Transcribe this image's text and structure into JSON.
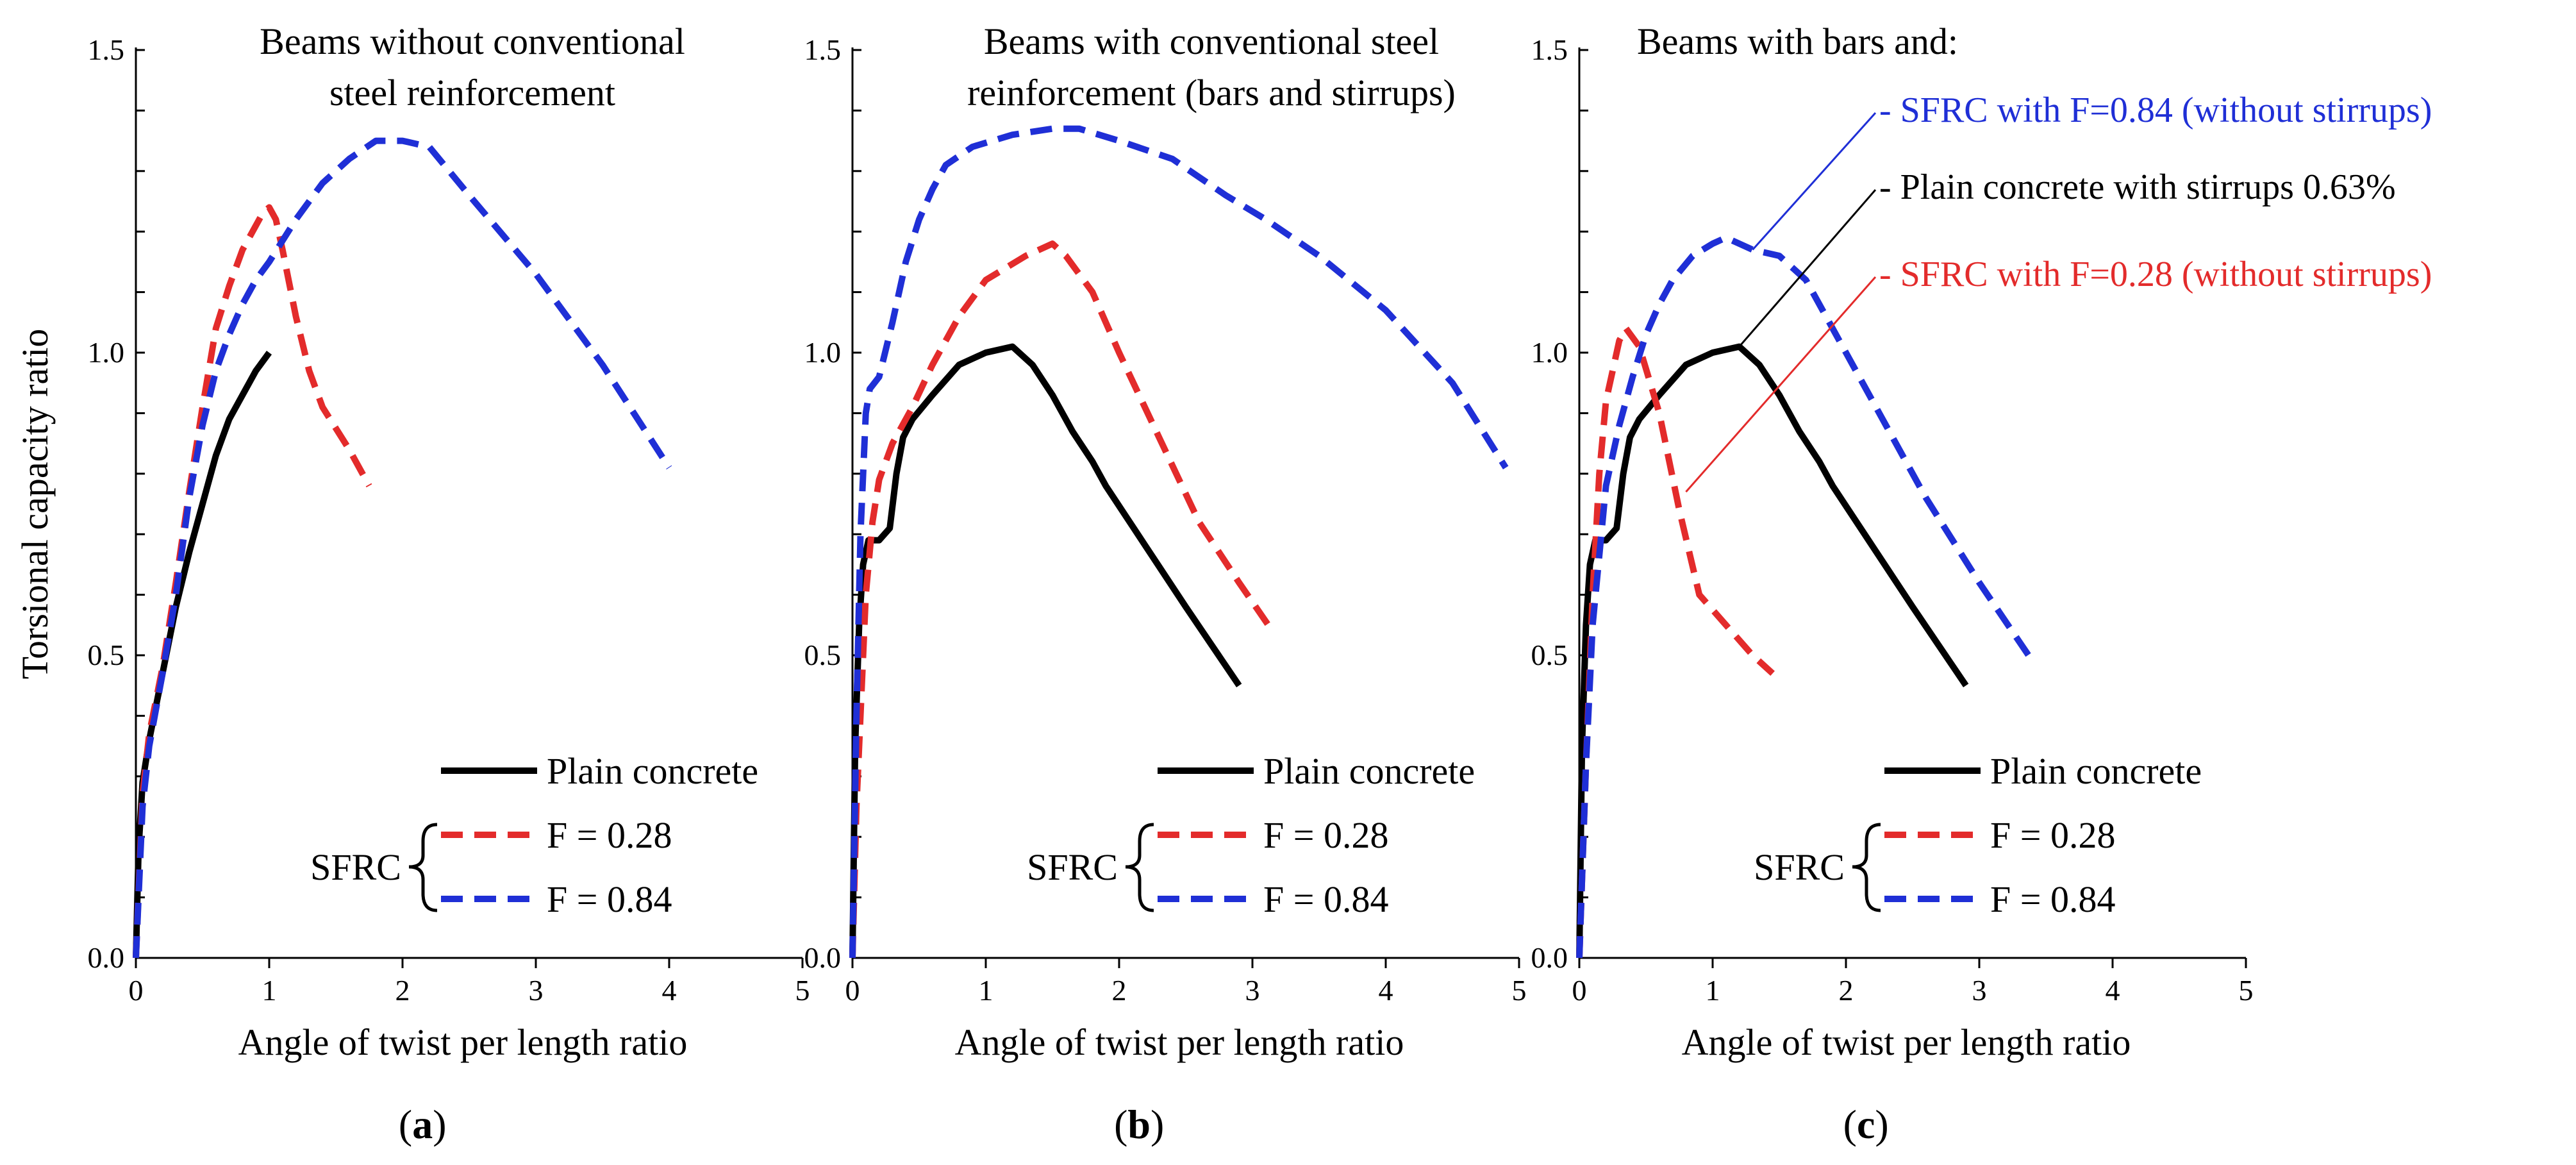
{
  "y_axis_title": "Torsional capacity ratio",
  "x_axis_title": "Angle of twist per length ratio",
  "x_ticks": [
    "0",
    "1",
    "2",
    "3",
    "4",
    "5"
  ],
  "y_ticks": [
    "0.0",
    "0.5",
    "1.0",
    "1.5"
  ],
  "colors": {
    "plain": "#000000",
    "f028": "#e32b2b",
    "f084": "#1f2fd6"
  },
  "legend": {
    "group_label": "SFRC",
    "plain": "Plain concrete",
    "f028": "F = 0.28",
    "f084": "F = 0.84"
  },
  "panels": [
    {
      "label_open": "(",
      "label_letter": "a",
      "label_close": ")",
      "title_lines": [
        "Beams without conventional",
        "steel reinforcement"
      ]
    },
    {
      "label_open": "(",
      "label_letter": "b",
      "label_close": ")",
      "title_lines": [
        "Beams with conventional steel",
        "reinforcement  (bars and stirrups)"
      ]
    },
    {
      "label_open": "(",
      "label_letter": "c",
      "label_close": ")",
      "title_lines": [
        "Beams with bars and:"
      ],
      "annotations": [
        {
          "text": "- SFRC with F=0.84 (without stirrups)",
          "color": "#1f2fd6",
          "point": [
            1.3,
            1.17
          ]
        },
        {
          "text": "- Plain concrete with stirrups 0.63%",
          "color": "#000000",
          "point": [
            1.2,
            1.01
          ]
        },
        {
          "text": "- SFRC with F=0.28 (without stirrups)",
          "color": "#e32b2b",
          "point": [
            0.8,
            0.77
          ]
        }
      ]
    }
  ],
  "chart_data": [
    {
      "type": "line",
      "title": "Beams without conventional steel reinforcement",
      "xlabel": "Angle of twist per length ratio",
      "ylabel": "Torsional capacity ratio",
      "xlim": [
        0,
        5
      ],
      "ylim": [
        0,
        1.5
      ],
      "series": [
        {
          "name": "Plain concrete",
          "style": "solid",
          "x": [
            0,
            0.02,
            0.05,
            0.1,
            0.2,
            0.3,
            0.4,
            0.5,
            0.6,
            0.7,
            0.8,
            0.9,
            1.0
          ],
          "y": [
            0,
            0.18,
            0.29,
            0.36,
            0.47,
            0.58,
            0.67,
            0.75,
            0.83,
            0.89,
            0.93,
            0.97,
            1.0
          ]
        },
        {
          "name": "F = 0.28",
          "style": "dashed",
          "x": [
            0,
            0.05,
            0.1,
            0.2,
            0.3,
            0.4,
            0.5,
            0.6,
            0.7,
            0.8,
            0.9,
            0.95,
            1.0,
            1.05,
            1.1,
            1.2,
            1.3,
            1.4,
            1.6,
            1.75
          ],
          "y": [
            0,
            0.27,
            0.37,
            0.48,
            0.62,
            0.77,
            0.91,
            1.04,
            1.11,
            1.17,
            1.21,
            1.23,
            1.24,
            1.22,
            1.17,
            1.06,
            0.97,
            0.91,
            0.84,
            0.78
          ]
        },
        {
          "name": "F = 0.84",
          "style": "dashed",
          "x": [
            0,
            0.05,
            0.1,
            0.2,
            0.3,
            0.4,
            0.5,
            0.6,
            0.7,
            0.8,
            0.9,
            1.0,
            1.2,
            1.4,
            1.6,
            1.8,
            2.0,
            2.2,
            2.5,
            3.0,
            3.5,
            4.0
          ],
          "y": [
            0,
            0.25,
            0.35,
            0.47,
            0.6,
            0.76,
            0.88,
            0.97,
            1.03,
            1.08,
            1.12,
            1.15,
            1.22,
            1.28,
            1.32,
            1.35,
            1.35,
            1.34,
            1.26,
            1.13,
            0.98,
            0.81
          ]
        }
      ]
    },
    {
      "type": "line",
      "title": "Beams with conventional steel reinforcement (bars and stirrups)",
      "xlabel": "Angle of twist per length ratio",
      "ylabel": "",
      "xlim": [
        0,
        5
      ],
      "ylim": [
        0,
        1.5
      ],
      "series": [
        {
          "name": "Plain concrete",
          "style": "solid",
          "x": [
            0,
            0.02,
            0.05,
            0.08,
            0.12,
            0.15,
            0.2,
            0.28,
            0.33,
            0.38,
            0.45,
            0.6,
            0.8,
            1.0,
            1.2,
            1.35,
            1.5,
            1.65,
            1.8,
            1.9,
            2.2,
            2.5,
            2.9
          ],
          "y": [
            0,
            0.35,
            0.55,
            0.65,
            0.69,
            0.69,
            0.69,
            0.71,
            0.8,
            0.86,
            0.89,
            0.93,
            0.98,
            1.0,
            1.01,
            0.98,
            0.93,
            0.87,
            0.82,
            0.78,
            0.68,
            0.58,
            0.45
          ]
        },
        {
          "name": "F = 0.28",
          "style": "dashed",
          "x": [
            0,
            0.03,
            0.06,
            0.1,
            0.15,
            0.2,
            0.25,
            0.3,
            0.45,
            0.6,
            0.8,
            1.0,
            1.3,
            1.5,
            1.6,
            1.8,
            2.0,
            2.3,
            2.6,
            2.9,
            3.15
          ],
          "y": [
            0,
            0.25,
            0.4,
            0.6,
            0.72,
            0.79,
            0.82,
            0.85,
            0.91,
            0.98,
            1.06,
            1.12,
            1.16,
            1.18,
            1.16,
            1.1,
            1.0,
            0.86,
            0.72,
            0.62,
            0.54
          ]
        },
        {
          "name": "F = 0.84",
          "style": "dashed",
          "x": [
            0,
            0.03,
            0.06,
            0.1,
            0.13,
            0.2,
            0.3,
            0.4,
            0.5,
            0.6,
            0.7,
            0.9,
            1.2,
            1.5,
            1.7,
            2.0,
            2.4,
            2.8,
            3.1,
            3.5,
            4.0,
            4.5,
            4.9
          ],
          "y": [
            0,
            0.4,
            0.7,
            0.9,
            0.94,
            0.96,
            1.05,
            1.15,
            1.22,
            1.27,
            1.31,
            1.34,
            1.36,
            1.37,
            1.37,
            1.35,
            1.32,
            1.26,
            1.22,
            1.16,
            1.07,
            0.95,
            0.81
          ]
        }
      ]
    },
    {
      "type": "line",
      "title": "Beams with bars and:",
      "xlabel": "Angle of twist per length ratio",
      "ylabel": "",
      "xlim": [
        0,
        5
      ],
      "ylim": [
        0,
        1.5
      ],
      "series": [
        {
          "name": "Plain concrete",
          "style": "solid",
          "x": [
            0,
            0.02,
            0.05,
            0.08,
            0.12,
            0.15,
            0.2,
            0.28,
            0.33,
            0.38,
            0.45,
            0.6,
            0.8,
            1.0,
            1.2,
            1.35,
            1.5,
            1.65,
            1.8,
            1.9,
            2.2,
            2.5,
            2.9
          ],
          "y": [
            0,
            0.35,
            0.55,
            0.65,
            0.69,
            0.69,
            0.69,
            0.71,
            0.8,
            0.86,
            0.89,
            0.93,
            0.98,
            1.0,
            1.01,
            0.98,
            0.93,
            0.87,
            0.82,
            0.78,
            0.68,
            0.58,
            0.45
          ]
        },
        {
          "name": "F = 0.28",
          "style": "dashed",
          "x": [
            0,
            0.05,
            0.1,
            0.15,
            0.2,
            0.3,
            0.35,
            0.45,
            0.6,
            0.75,
            0.9,
            1.1,
            1.3,
            1.45
          ],
          "y": [
            0,
            0.32,
            0.6,
            0.8,
            0.92,
            1.02,
            1.04,
            1.01,
            0.9,
            0.74,
            0.6,
            0.55,
            0.5,
            0.47
          ]
        },
        {
          "name": "F = 0.84",
          "style": "dashed",
          "x": [
            0,
            0.05,
            0.1,
            0.2,
            0.3,
            0.4,
            0.5,
            0.6,
            0.7,
            0.85,
            1.0,
            1.1,
            1.3,
            1.5,
            1.7,
            2.0,
            2.3,
            2.6,
            3.0,
            3.4
          ],
          "y": [
            0,
            0.32,
            0.55,
            0.78,
            0.88,
            0.96,
            1.03,
            1.08,
            1.12,
            1.16,
            1.18,
            1.19,
            1.17,
            1.16,
            1.12,
            1.0,
            0.88,
            0.76,
            0.62,
            0.49
          ]
        }
      ]
    }
  ]
}
